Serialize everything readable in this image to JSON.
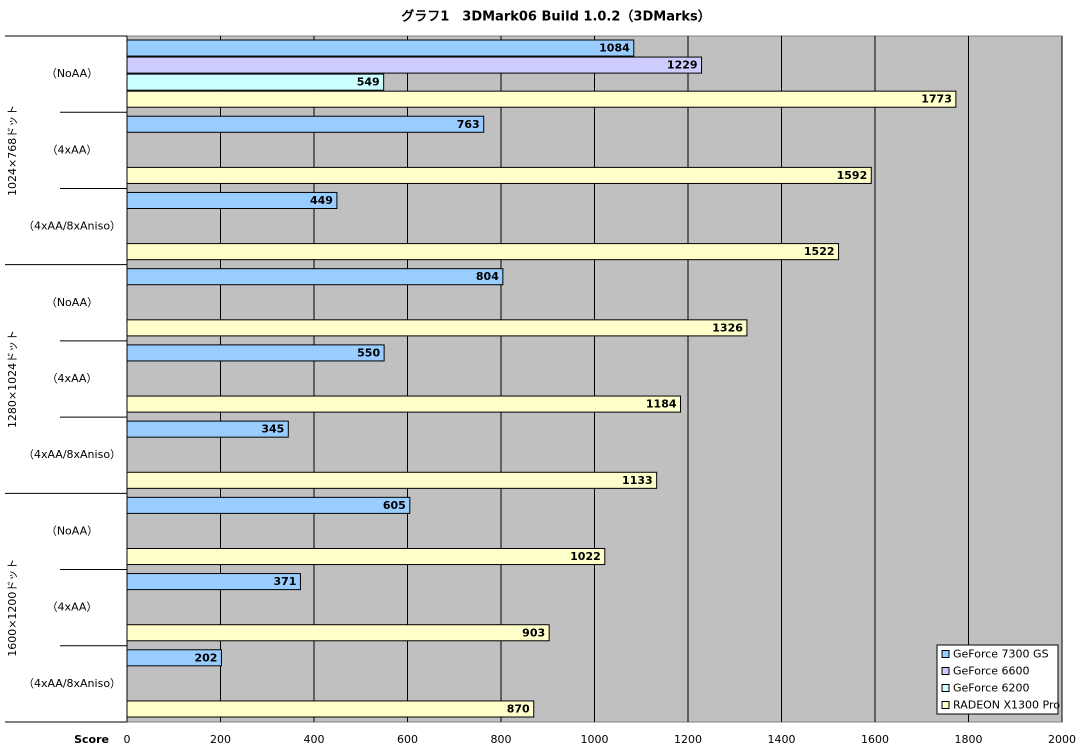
{
  "chart_data": {
    "type": "barh",
    "title": "グラフ1　3DMark06  Build 1.0.2（3DMarks）",
    "x_label": "Score",
    "category_groups": [
      "1024×768ドット",
      "1280×1024ドット",
      "1600×1200ドット"
    ],
    "categories": [
      "（NoAA）",
      "（4xAA）",
      "（4xAA/8xAniso）",
      "（NoAA）",
      "（4xAA）",
      "（4xAA/8xAniso）",
      "（NoAA）",
      "（4xAA）",
      "（4xAA/8xAniso）"
    ],
    "series": [
      {
        "name": "GeForce 7300 GS",
        "color": "#99ccff",
        "values": [
          1084,
          763,
          449,
          804,
          550,
          345,
          605,
          371,
          202
        ]
      },
      {
        "name": "GeForce 6600",
        "color": "#ccccff",
        "values": [
          1229,
          null,
          null,
          null,
          null,
          null,
          null,
          null,
          null
        ]
      },
      {
        "name": "GeForce 6200",
        "color": "#ccffff",
        "values": [
          549,
          null,
          null,
          null,
          null,
          null,
          null,
          null,
          null
        ]
      },
      {
        "name": "RADEON X1300 Pro",
        "color": "#ffffcc",
        "values": [
          1773,
          1592,
          1522,
          1326,
          1184,
          1133,
          1022,
          903,
          870
        ]
      }
    ],
    "xlim": [
      0,
      2000
    ],
    "xticks": [
      0,
      200,
      400,
      600,
      800,
      1000,
      1200,
      1400,
      1600,
      1800,
      2000
    ],
    "grid": true,
    "legend": "lower right",
    "plot_background": "#c0c0c0"
  }
}
